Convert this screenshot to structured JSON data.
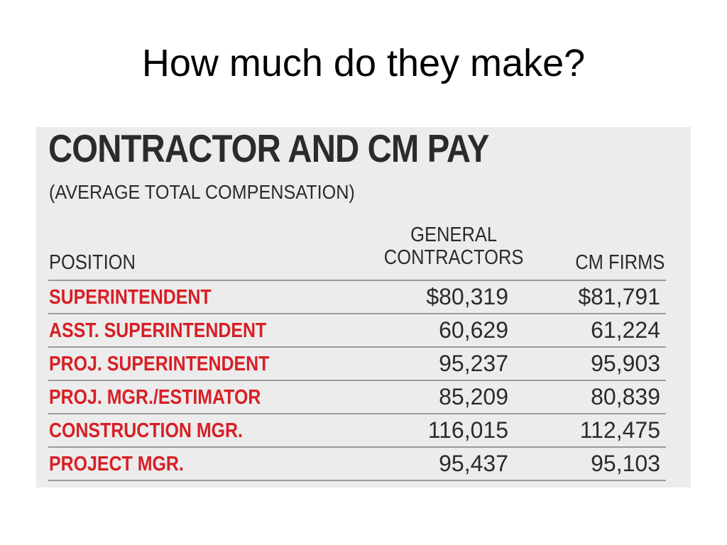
{
  "slide": {
    "title": "How much do they make?"
  },
  "graphic": {
    "title": "CONTRACTOR AND CM PAY",
    "subtitle": "(AVERAGE TOTAL COMPENSATION)",
    "columns": {
      "position": "POSITION",
      "general_contractors_line1": "GENERAL",
      "general_contractors_line2": "CONTRACTORS",
      "cm_firms": "CM FIRMS"
    },
    "rows": [
      {
        "position": "SUPERINTENDENT",
        "general_contractors": "$80,319",
        "cm_firms": "$81,791"
      },
      {
        "position": "ASST. SUPERINTENDENT",
        "general_contractors": "60,629",
        "cm_firms": "61,224"
      },
      {
        "position": "PROJ. SUPERINTENDENT",
        "general_contractors": "95,237",
        "cm_firms": "95,903"
      },
      {
        "position": "PROJ. MGR./ESTIMATOR",
        "general_contractors": "85,209",
        "cm_firms": "80,839"
      },
      {
        "position": "CONSTRUCTION MGR.",
        "general_contractors": "116,015",
        "cm_firms": "112,475"
      },
      {
        "position": "PROJECT MGR.",
        "general_contractors": "95,437",
        "cm_firms": "95,103"
      }
    ],
    "colors": {
      "panel_background": "#ececec",
      "position_text": "#d71f26",
      "body_text": "#2b2b2b",
      "rule": "#9a9a9a"
    }
  }
}
